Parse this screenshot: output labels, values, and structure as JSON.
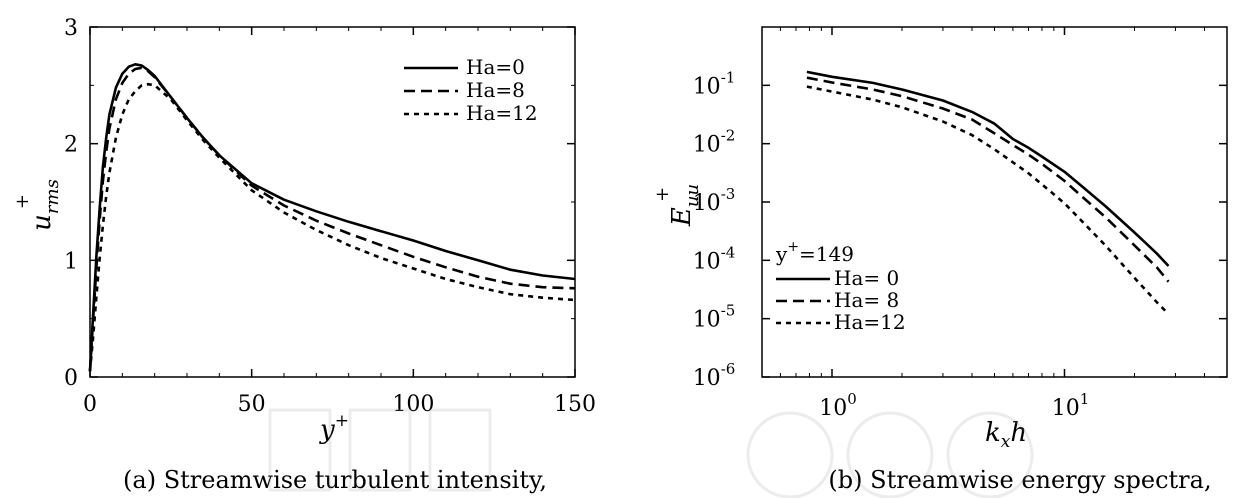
{
  "chart_data": [
    {
      "type": "line",
      "caption": "(a) Streamwise turbulent intensity,",
      "xlabel": "y",
      "xlabel_sup": "+",
      "ylabel": "u",
      "ylabel_sub": "rms",
      "ylabel_sup": "+",
      "xlim": [
        0,
        150
      ],
      "ylim": [
        0,
        3
      ],
      "x_ticks": [
        0,
        50,
        100,
        150
      ],
      "y_ticks": [
        0,
        1,
        2,
        3
      ],
      "grid": false,
      "legend_position": "top-right",
      "series": [
        {
          "name": "Ha=0",
          "style": "solid",
          "x": [
            0,
            1,
            2,
            3,
            4,
            5,
            6,
            8,
            10,
            12,
            14,
            16,
            18,
            20,
            25,
            30,
            35,
            40,
            45,
            50,
            60,
            70,
            80,
            90,
            100,
            110,
            120,
            130,
            140,
            150
          ],
          "y": [
            0.05,
            0.55,
            1.05,
            1.45,
            1.8,
            2.05,
            2.25,
            2.48,
            2.6,
            2.66,
            2.68,
            2.67,
            2.63,
            2.58,
            2.4,
            2.22,
            2.05,
            1.9,
            1.78,
            1.66,
            1.52,
            1.42,
            1.33,
            1.25,
            1.17,
            1.08,
            1.0,
            0.92,
            0.87,
            0.84
          ]
        },
        {
          "name": "Ha=8",
          "style": "dashed",
          "x": [
            0,
            1,
            2,
            3,
            4,
            5,
            6,
            8,
            10,
            12,
            14,
            16,
            18,
            20,
            25,
            30,
            35,
            40,
            45,
            50,
            60,
            70,
            80,
            90,
            100,
            110,
            120,
            130,
            140,
            150
          ],
          "y": [
            0.05,
            0.5,
            0.95,
            1.35,
            1.68,
            1.93,
            2.13,
            2.38,
            2.52,
            2.6,
            2.64,
            2.65,
            2.62,
            2.57,
            2.4,
            2.22,
            2.05,
            1.9,
            1.77,
            1.64,
            1.47,
            1.34,
            1.23,
            1.13,
            1.03,
            0.94,
            0.86,
            0.8,
            0.77,
            0.76
          ]
        },
        {
          "name": "Ha=12",
          "style": "dotted",
          "x": [
            0,
            1,
            2,
            3,
            4,
            5,
            6,
            8,
            10,
            12,
            14,
            16,
            18,
            20,
            25,
            30,
            35,
            40,
            45,
            50,
            60,
            70,
            80,
            90,
            100,
            110,
            120,
            130,
            140,
            150
          ],
          "y": [
            0.05,
            0.35,
            0.7,
            1.02,
            1.3,
            1.55,
            1.75,
            2.05,
            2.25,
            2.38,
            2.45,
            2.5,
            2.51,
            2.5,
            2.38,
            2.2,
            2.03,
            1.88,
            1.74,
            1.6,
            1.41,
            1.26,
            1.13,
            1.02,
            0.93,
            0.84,
            0.77,
            0.71,
            0.68,
            0.66
          ]
        }
      ]
    },
    {
      "type": "line",
      "caption": "(b) Streamwise energy spectra,",
      "xlabel": "k",
      "xlabel_sub": "x",
      "xlabel_suffix": "h",
      "ylabel": "E",
      "ylabel_sub": "uu",
      "ylabel_sup": "+",
      "xscale": "log",
      "yscale": "log",
      "xlim": [
        0.5,
        50
      ],
      "ylim": [
        1e-06,
        1
      ],
      "x_tick_base": "10",
      "x_tick_exponents": [
        "0",
        "1"
      ],
      "y_tick_base": "10",
      "y_tick_exponents": [
        "-6",
        "-5",
        "-4",
        "-3",
        "-2",
        "-1"
      ],
      "grid": false,
      "legend_position": "bottom-left",
      "legend_title": "y",
      "legend_title_sup": "+",
      "legend_title_suffix": "=149",
      "series": [
        {
          "name": "Ha= 0",
          "style": "solid",
          "x": [
            0.78,
            1.0,
            1.5,
            2.0,
            3.0,
            4.0,
            5.0,
            6.0,
            7.0,
            8.0,
            10.0,
            12.0,
            15.0,
            20.0,
            25.0,
            28.0
          ],
          "y": [
            0.17,
            0.14,
            0.11,
            0.085,
            0.055,
            0.035,
            0.022,
            0.012,
            0.0085,
            0.006,
            0.0033,
            0.0018,
            0.00085,
            0.0003,
            0.00013,
            8e-05
          ]
        },
        {
          "name": "Ha= 8",
          "style": "dashed",
          "x": [
            0.78,
            1.0,
            1.5,
            2.0,
            3.0,
            4.0,
            5.0,
            6.0,
            7.0,
            8.0,
            10.0,
            12.0,
            15.0,
            20.0,
            25.0,
            28.0
          ],
          "y": [
            0.135,
            0.112,
            0.085,
            0.065,
            0.04,
            0.026,
            0.015,
            0.0095,
            0.0065,
            0.0045,
            0.0023,
            0.0012,
            0.00055,
            0.00018,
            7.5e-05,
            4.3e-05
          ]
        },
        {
          "name": "Ha=12",
          "style": "dotted",
          "x": [
            0.78,
            1.0,
            1.5,
            2.0,
            3.0,
            4.0,
            5.0,
            6.0,
            7.0,
            8.0,
            10.0,
            12.0,
            15.0,
            20.0,
            25.0,
            28.0
          ],
          "y": [
            0.095,
            0.078,
            0.057,
            0.042,
            0.024,
            0.014,
            0.008,
            0.0048,
            0.0031,
            0.002,
            0.00095,
            0.00045,
            0.00018,
            5e-05,
            1.9e-05,
            1.2e-05
          ]
        }
      ]
    }
  ]
}
